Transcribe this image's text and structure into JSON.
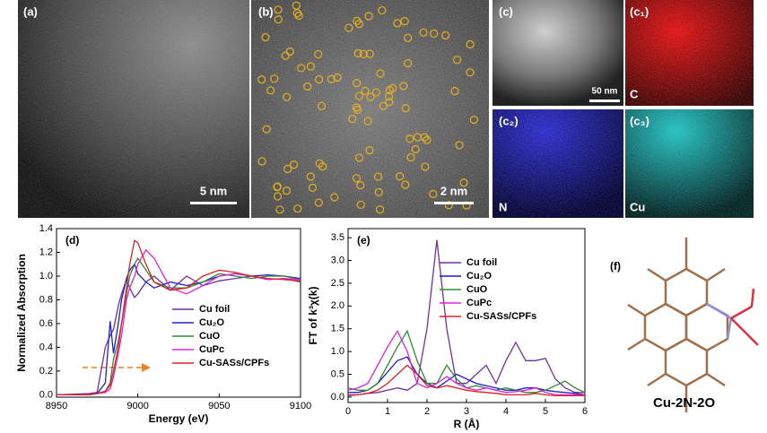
{
  "panels": [
    {
      "label": "(a)",
      "scale_bar": "5 nm"
    },
    {
      "label": "(b)",
      "scale_bar": "2 nm"
    },
    {
      "label": "(c)",
      "scale_bar": "50 nm"
    },
    {
      "label": "(c₁)",
      "element": "C"
    },
    {
      "label": "(c₂)",
      "element": "N"
    },
    {
      "label": "(c₃)",
      "element": "Cu"
    }
  ],
  "chart_data": [
    {
      "type": "line",
      "panel_label": "(d)",
      "x_label": "Energy (eV)",
      "y_label": "Normalized Absorption",
      "x": [
        8950,
        8970,
        8975,
        8980,
        8983,
        8985,
        8988,
        8990,
        8993,
        8995,
        8998,
        9000,
        9005,
        9010,
        9020,
        9030,
        9040,
        9050,
        9060,
        9070,
        9080,
        9090,
        9100
      ],
      "xlim": [
        8950,
        9100
      ],
      "xticks": [
        8950,
        9000,
        9050,
        9100
      ],
      "ylim": [
        -0.02,
        1.4
      ],
      "yticks": [
        {
          "value": 0,
          "label": "0.0"
        },
        0.2,
        0.4,
        0.6,
        0.8,
        {
          "value": 1,
          "label": "1.0"
        },
        1.2,
        1.4
      ],
      "legend": "center right",
      "series": [
        {
          "name": "Cu foil",
          "color": "#7030a0",
          "values": [
            0,
            0.01,
            0.02,
            0.4,
            0.5,
            0.55,
            0.75,
            0.85,
            0.97,
            0.9,
            0.82,
            0.85,
            0.95,
            1.0,
            0.88,
            1.0,
            0.92,
            0.96,
            0.98,
            1.0,
            0.97,
            0.98,
            0.95
          ]
        },
        {
          "name": "Cu₂O",
          "color": "#1f1fcc",
          "values": [
            0,
            0,
            0.01,
            0.1,
            0.62,
            0.35,
            0.6,
            0.8,
            0.98,
            1.05,
            1.1,
            1.02,
            0.95,
            0.9,
            0.95,
            0.92,
            0.95,
            1.0,
            1.02,
            1.0,
            1.01,
            1.0,
            0.98
          ]
        },
        {
          "name": "CuO",
          "color": "#2e8b2e",
          "values": [
            0,
            0,
            0.01,
            0.03,
            0.1,
            0.3,
            0.45,
            0.6,
            0.85,
            1.0,
            1.1,
            1.15,
            1.05,
            0.95,
            0.9,
            0.9,
            0.95,
            1.02,
            1.0,
            0.98,
            1.0,
            1.0,
            0.97
          ]
        },
        {
          "name": "CuPc",
          "color": "#e020e0",
          "values": [
            0,
            0,
            0.01,
            0.02,
            0.05,
            0.15,
            0.35,
            0.5,
            0.8,
            0.9,
            1.0,
            1.1,
            1.22,
            1.15,
            0.9,
            0.85,
            0.92,
            1.0,
            1.02,
            1.0,
            0.97,
            0.98,
            0.97
          ]
        },
        {
          "name": "Cu-SASs/CPFs",
          "color": "#e02020",
          "values": [
            0,
            0,
            0.01,
            0.03,
            0.08,
            0.2,
            0.4,
            0.6,
            0.9,
            1.1,
            1.3,
            1.28,
            1.1,
            0.95,
            0.88,
            0.9,
            1.0,
            1.05,
            1.03,
            1.0,
            0.98,
            0.97,
            0.96
          ]
        }
      ]
    },
    {
      "type": "line",
      "panel_label": "(e)",
      "x_label": "R (Å)",
      "y_label": "FT of k³χ(k)",
      "x": [
        0,
        0.25,
        0.5,
        0.75,
        1,
        1.25,
        1.5,
        1.75,
        2,
        2.25,
        2.5,
        2.75,
        3,
        3.25,
        3.5,
        3.75,
        4,
        4.25,
        4.5,
        4.75,
        5,
        5.25,
        5.5,
        5.75,
        6
      ],
      "xlim": [
        0,
        6
      ],
      "xticks": [
        0,
        1,
        2,
        3,
        4,
        5,
        6
      ],
      "ylim": [
        -0.12,
        3.7
      ],
      "yticks": [
        {
          "value": 0,
          "label": "0.0"
        },
        0.5,
        {
          "value": 1,
          "label": "1.0"
        },
        1.5,
        {
          "value": 2,
          "label": "2.0"
        },
        2.5,
        {
          "value": 3,
          "label": "3.0"
        },
        3.5
      ],
      "legend": "upper right",
      "series": [
        {
          "name": "Cu foil",
          "color": "#7030a0",
          "values": [
            0.03,
            0.05,
            0.08,
            0.1,
            0.15,
            0.2,
            0.15,
            0.3,
            1.5,
            3.45,
            1.5,
            0.3,
            0.3,
            0.5,
            0.7,
            0.3,
            0.8,
            1.2,
            0.8,
            0.8,
            0.85,
            0.4,
            0.2,
            0.1,
            0.1
          ]
        },
        {
          "name": "Cu₂O",
          "color": "#1f1fcc",
          "values": [
            0.1,
            0.1,
            0.15,
            0.3,
            0.55,
            0.8,
            0.88,
            0.5,
            0.3,
            0.2,
            0.35,
            0.5,
            0.4,
            0.3,
            0.25,
            0.2,
            0.15,
            0.15,
            0.2,
            0.2,
            0.15,
            0.12,
            0.1,
            0.08,
            0.05
          ]
        },
        {
          "name": "CuO",
          "color": "#2e8b2e",
          "values": [
            0.2,
            0.15,
            0.15,
            0.3,
            0.7,
            1.1,
            1.45,
            0.8,
            0.3,
            0.3,
            0.7,
            0.4,
            0.2,
            0.25,
            0.2,
            0.15,
            0.2,
            0.15,
            0.1,
            0.1,
            0.15,
            0.25,
            0.35,
            0.2,
            0.1
          ]
        },
        {
          "name": "CuPc",
          "color": "#e020e0",
          "values": [
            0.15,
            0.2,
            0.3,
            0.7,
            1.1,
            1.45,
            1.0,
            0.3,
            0.2,
            0.3,
            0.45,
            0.3,
            0.2,
            0.15,
            0.2,
            0.15,
            0.1,
            0.12,
            0.15,
            0.2,
            0.1,
            0.05,
            0.05,
            0.05,
            0.05
          ]
        },
        {
          "name": "Cu-SASs/CPFs",
          "color": "#e02020",
          "values": [
            0.05,
            0.05,
            0.08,
            0.15,
            0.3,
            0.5,
            0.7,
            0.5,
            0.25,
            0.2,
            0.25,
            0.2,
            0.15,
            0.12,
            0.1,
            0.08,
            0.05,
            0.05,
            0.05,
            0.08,
            0.05,
            0.03,
            0.03,
            0.03,
            0.03
          ]
        }
      ]
    }
  ],
  "diagram": {
    "label": "(f)",
    "caption": "Cu-2N-2O"
  }
}
